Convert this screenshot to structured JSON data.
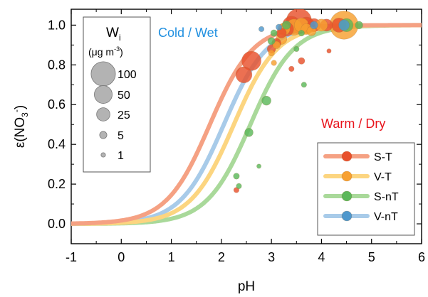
{
  "chart_data": {
    "type": "scatter",
    "xlabel": "pH",
    "ylabel_main": "ε(NO",
    "ylabel_sub": "3",
    "ylabel_sup": "-",
    "ylabel_close": ")",
    "xlim": [
      -1,
      6
    ],
    "ylim": [
      -0.1,
      1.08
    ],
    "x_ticks": [
      -1,
      0,
      1,
      2,
      3,
      4,
      5,
      6
    ],
    "x_tick_labels": [
      "-1",
      "0",
      "1",
      "2",
      "3",
      "4",
      "5",
      "6"
    ],
    "y_ticks": [
      0,
      0.2,
      0.4,
      0.6,
      0.8,
      1.0
    ],
    "y_tick_labels": [
      "0.0",
      "0.2",
      "0.4",
      "0.6",
      "0.8",
      "1.0"
    ],
    "grid": false,
    "annotations": [
      {
        "text": "Cold / Wet",
        "color": "#1f8fe0"
      },
      {
        "text": "Warm / Dry",
        "color": "#e8141c"
      }
    ],
    "size_legend": {
      "title_main": "W",
      "title_sub": "i",
      "unit_prefix": "(μg m",
      "unit_sup": "-3",
      "unit_suffix": ")",
      "entries": [
        "100",
        "50",
        "25",
        "5",
        "1"
      ],
      "weights": [
        100,
        50,
        25,
        5,
        1
      ]
    },
    "series": [
      {
        "name": "S-T",
        "line_color": "#f5a183",
        "marker_color": "#e8502c",
        "pH_half": 1.77,
        "points": [
          {
            "x": 2.3,
            "y": 0.17,
            "w": 2
          },
          {
            "x": 2.45,
            "y": 0.75,
            "w": 40
          },
          {
            "x": 2.6,
            "y": 0.82,
            "w": 60
          },
          {
            "x": 3.0,
            "y": 0.88,
            "w": 8
          },
          {
            "x": 3.1,
            "y": 0.91,
            "w": 10
          },
          {
            "x": 3.2,
            "y": 0.96,
            "w": 12
          },
          {
            "x": 3.3,
            "y": 0.98,
            "w": 30
          },
          {
            "x": 3.4,
            "y": 1.0,
            "w": 50
          },
          {
            "x": 3.55,
            "y": 1.02,
            "w": 110
          },
          {
            "x": 3.7,
            "y": 1.0,
            "w": 40
          },
          {
            "x": 3.85,
            "y": 1.0,
            "w": 25
          },
          {
            "x": 4.1,
            "y": 1.0,
            "w": 20
          },
          {
            "x": 4.35,
            "y": 1.0,
            "w": 30
          },
          {
            "x": 4.15,
            "y": 0.87,
            "w": 1
          },
          {
            "x": 3.6,
            "y": 0.82,
            "w": 4
          },
          {
            "x": 3.4,
            "y": 0.78,
            "w": 2
          }
        ]
      },
      {
        "name": "V-T",
        "line_color": "#fcd580",
        "marker_color": "#f7a030",
        "pH_half": 2.25,
        "points": [
          {
            "x": 3.1,
            "y": 0.9,
            "w": 6
          },
          {
            "x": 3.2,
            "y": 0.93,
            "w": 15
          },
          {
            "x": 3.25,
            "y": 0.98,
            "w": 20
          },
          {
            "x": 3.45,
            "y": 0.99,
            "w": 40
          },
          {
            "x": 3.6,
            "y": 1.0,
            "w": 30
          },
          {
            "x": 3.7,
            "y": 0.98,
            "w": 15
          },
          {
            "x": 3.8,
            "y": 0.97,
            "w": 10
          },
          {
            "x": 4.0,
            "y": 1.0,
            "w": 20
          },
          {
            "x": 4.45,
            "y": 1.0,
            "w": 140
          },
          {
            "x": 3.0,
            "y": 0.86,
            "w": 3
          },
          {
            "x": 3.05,
            "y": 0.81,
            "w": 2
          }
        ]
      },
      {
        "name": "S-nT",
        "line_color": "#a9d99a",
        "marker_color": "#5cb85a",
        "pH_half": 2.58,
        "points": [
          {
            "x": 2.3,
            "y": 0.24,
            "w": 3
          },
          {
            "x": 2.35,
            "y": 0.19,
            "w": 2
          },
          {
            "x": 2.55,
            "y": 0.46,
            "w": 8
          },
          {
            "x": 2.75,
            "y": 0.29,
            "w": 1
          },
          {
            "x": 2.9,
            "y": 0.62,
            "w": 10
          },
          {
            "x": 3.0,
            "y": 0.92,
            "w": 5
          },
          {
            "x": 3.05,
            "y": 0.96,
            "w": 4
          },
          {
            "x": 3.3,
            "y": 1.0,
            "w": 8
          },
          {
            "x": 3.65,
            "y": 0.7,
            "w": 2
          },
          {
            "x": 3.5,
            "y": 0.88,
            "w": 2
          },
          {
            "x": 3.6,
            "y": 0.96,
            "w": 3
          },
          {
            "x": 4.5,
            "y": 1.0,
            "w": 25
          },
          {
            "x": 4.75,
            "y": 1.0,
            "w": 6
          }
        ]
      },
      {
        "name": "V-nT",
        "line_color": "#a8cbe9",
        "marker_color": "#4f98cd",
        "pH_half": 2.05,
        "points": [
          {
            "x": 2.8,
            "y": 0.98,
            "w": 2
          },
          {
            "x": 3.15,
            "y": 0.99,
            "w": 3
          },
          {
            "x": 3.85,
            "y": 1.0,
            "w": 6
          },
          {
            "x": 4.45,
            "y": 1.0,
            "w": 15
          }
        ]
      }
    ]
  }
}
